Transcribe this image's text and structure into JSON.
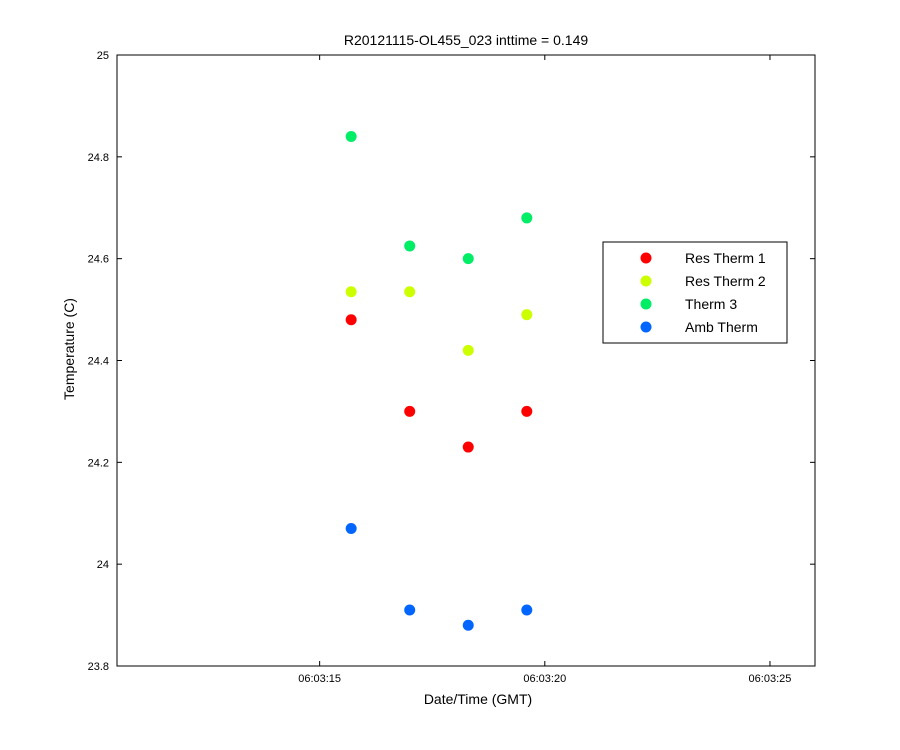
{
  "chart_data": {
    "type": "scatter",
    "title": "R20121115-OL455_023 inttime = 0.149",
    "xlabel": "Date/Time (GMT)",
    "ylabel": "Temperature (C)",
    "x_ticks": [
      "06:03:15",
      "06:03:20",
      "06:03:25"
    ],
    "xlim": [
      "06:03:10.5",
      "06:03:26"
    ],
    "x": [
      "06:03:15.7",
      "06:03:17",
      "06:03:18.3",
      "06:03:19.6"
    ],
    "ylim": [
      23.8,
      25
    ],
    "y_ticks": [
      "23.8",
      "24",
      "24.2",
      "24.4",
      "24.6",
      "24.8",
      "25"
    ],
    "grid": false,
    "legend_position": "right",
    "series": [
      {
        "name": "Res Therm 1",
        "color": "#ff0000",
        "values": [
          24.48,
          24.3,
          24.23,
          24.3
        ]
      },
      {
        "name": "Res Therm 2",
        "color": "#ccff00",
        "values": [
          24.535,
          24.535,
          24.42,
          24.49
        ]
      },
      {
        "name": "Therm 3",
        "color": "#00ee66",
        "values": [
          24.84,
          24.625,
          24.6,
          24.68
        ]
      },
      {
        "name": "Amb Therm",
        "color": "#0066ff",
        "values": [
          24.07,
          23.91,
          23.88,
          23.91
        ]
      }
    ]
  }
}
